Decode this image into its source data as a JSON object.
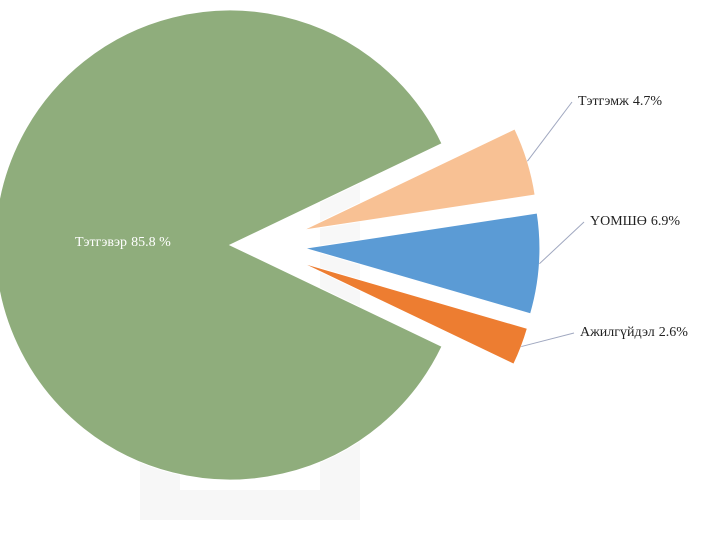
{
  "chart_data": {
    "type": "pie",
    "categories": [
      "Тэтгэмж",
      "ҮОМШӨ",
      "Ажилгүйдэл",
      "Тэтгэвэр"
    ],
    "values": [
      4.7,
      6.9,
      2.6,
      85.8
    ],
    "value_labels": [
      "4.7%",
      "6.9%",
      "2.6%",
      "85.8 %"
    ],
    "colors": [
      "#f8c194",
      "#5b9bd5",
      "#ed7d31",
      "#8fad7c"
    ]
  }
}
